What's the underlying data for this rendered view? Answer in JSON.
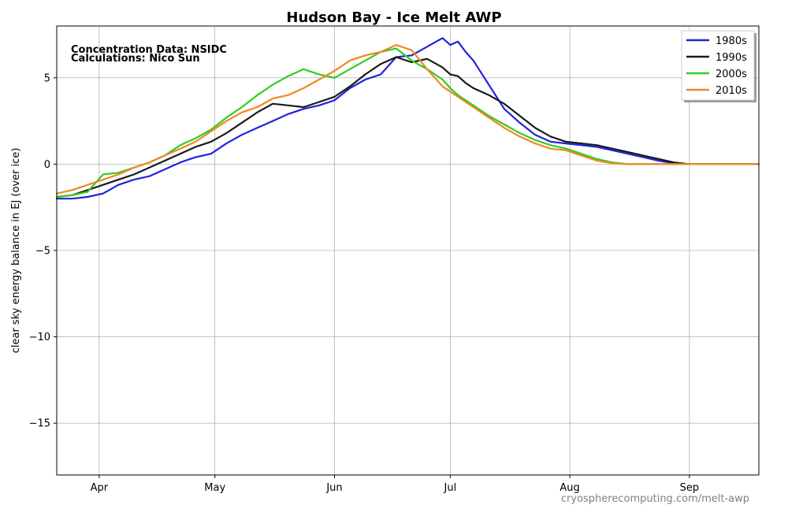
{
  "chart_data": {
    "type": "line",
    "title": "Hudson Bay - Ice Melt AWP",
    "xlabel": "",
    "ylabel": "clear sky energy balance in EJ (over ice)",
    "x_unit": "day of year",
    "xlim": [
      80,
      262
    ],
    "ylim": [
      -18,
      8
    ],
    "y_ticks": [
      5,
      0,
      -5,
      -10,
      -15
    ],
    "y_tick_labels": [
      "5",
      "0",
      "−5",
      "−10",
      "−15"
    ],
    "x_ticks": [
      91,
      121,
      152,
      182,
      213,
      244
    ],
    "x_tick_labels": [
      "Apr",
      "May",
      "Jun",
      "Jul",
      "Aug",
      "Sep"
    ],
    "grid": true,
    "legend_position": "top-right",
    "annotations": [
      "Concentration Data: NSIDC",
      "Calculations: Nico Sun"
    ],
    "watermark": "cryospherecomputing.com/melt-awp",
    "series": [
      {
        "name": "1980s",
        "color": "#2222dd",
        "x": [
          80,
          84,
          88,
          92,
          96,
          100,
          104,
          108,
          112,
          116,
          120,
          124,
          128,
          132,
          136,
          140,
          144,
          148,
          152,
          156,
          160,
          164,
          168,
          172,
          176,
          180,
          182,
          184,
          186,
          188,
          190,
          192,
          196,
          200,
          204,
          208,
          212,
          216,
          220,
          224,
          228,
          232,
          236,
          240,
          244,
          248,
          252,
          256,
          262
        ],
        "y": [
          -2.0,
          -2.0,
          -1.9,
          -1.7,
          -1.2,
          -0.9,
          -0.7,
          -0.3,
          0.1,
          0.4,
          0.6,
          1.2,
          1.7,
          2.1,
          2.5,
          2.9,
          3.2,
          3.4,
          3.7,
          4.4,
          4.9,
          5.2,
          6.2,
          6.3,
          6.8,
          7.3,
          6.9,
          7.1,
          6.5,
          6.0,
          5.3,
          4.6,
          3.2,
          2.4,
          1.7,
          1.3,
          1.2,
          1.1,
          1.0,
          0.8,
          0.6,
          0.4,
          0.2,
          0.05,
          0.0,
          0.0,
          0.0,
          0.0,
          0.0
        ]
      },
      {
        "name": "1990s",
        "color": "#1a1a1a",
        "x": [
          80,
          84,
          88,
          92,
          96,
          100,
          104,
          108,
          112,
          116,
          120,
          124,
          128,
          132,
          136,
          140,
          144,
          148,
          152,
          156,
          160,
          164,
          168,
          172,
          176,
          180,
          182,
          184,
          186,
          188,
          190,
          192,
          196,
          200,
          204,
          208,
          212,
          216,
          220,
          224,
          228,
          232,
          236,
          240,
          244,
          248,
          252,
          256,
          262
        ],
        "y": [
          -1.9,
          -1.8,
          -1.5,
          -1.2,
          -0.9,
          -0.6,
          -0.2,
          0.2,
          0.6,
          1.0,
          1.3,
          1.8,
          2.4,
          3.0,
          3.5,
          3.4,
          3.3,
          3.6,
          3.9,
          4.5,
          5.2,
          5.8,
          6.2,
          5.9,
          6.1,
          5.6,
          5.2,
          5.1,
          4.7,
          4.4,
          4.2,
          4.0,
          3.5,
          2.8,
          2.1,
          1.6,
          1.3,
          1.2,
          1.1,
          0.9,
          0.7,
          0.5,
          0.3,
          0.1,
          0.0,
          0.0,
          0.0,
          0.0,
          0.0
        ]
      },
      {
        "name": "2000s",
        "color": "#33cc22",
        "x": [
          80,
          84,
          88,
          92,
          96,
          100,
          104,
          108,
          112,
          116,
          120,
          124,
          128,
          132,
          136,
          140,
          144,
          148,
          152,
          156,
          160,
          164,
          168,
          172,
          176,
          180,
          182,
          184,
          186,
          188,
          190,
          192,
          196,
          200,
          204,
          208,
          212,
          216,
          220,
          224,
          228,
          232,
          236,
          240,
          244,
          248,
          252,
          256,
          262
        ],
        "y": [
          -1.9,
          -1.8,
          -1.6,
          -0.6,
          -0.5,
          -0.2,
          0.1,
          0.5,
          1.1,
          1.5,
          2.0,
          2.7,
          3.3,
          4.0,
          4.6,
          5.1,
          5.5,
          5.2,
          5.0,
          5.5,
          6.0,
          6.5,
          6.7,
          6.0,
          5.5,
          4.9,
          4.4,
          4.0,
          3.7,
          3.4,
          3.1,
          2.8,
          2.3,
          1.8,
          1.4,
          1.1,
          0.9,
          0.6,
          0.3,
          0.1,
          0.0,
          0.0,
          0.0,
          0.0,
          0.0,
          0.0,
          0.0,
          0.0,
          0.0
        ]
      },
      {
        "name": "2010s",
        "color": "#ee8822",
        "x": [
          80,
          84,
          88,
          92,
          96,
          100,
          104,
          108,
          112,
          116,
          120,
          124,
          128,
          132,
          136,
          140,
          144,
          148,
          152,
          156,
          160,
          164,
          168,
          172,
          176,
          180,
          182,
          184,
          186,
          188,
          190,
          192,
          196,
          200,
          204,
          208,
          212,
          216,
          220,
          224,
          228,
          232,
          236,
          240,
          244,
          248,
          252,
          256,
          262
        ],
        "y": [
          -1.7,
          -1.5,
          -1.2,
          -0.9,
          -0.6,
          -0.2,
          0.1,
          0.5,
          0.9,
          1.3,
          1.9,
          2.5,
          3.0,
          3.3,
          3.8,
          4.0,
          4.4,
          4.9,
          5.4,
          6.0,
          6.3,
          6.5,
          6.9,
          6.6,
          5.5,
          4.5,
          4.2,
          3.9,
          3.6,
          3.3,
          3.0,
          2.7,
          2.1,
          1.6,
          1.2,
          0.9,
          0.8,
          0.5,
          0.2,
          0.05,
          0.0,
          0.0,
          0.0,
          0.0,
          0.0,
          0.0,
          0.0,
          0.0,
          0.0
        ]
      }
    ]
  }
}
